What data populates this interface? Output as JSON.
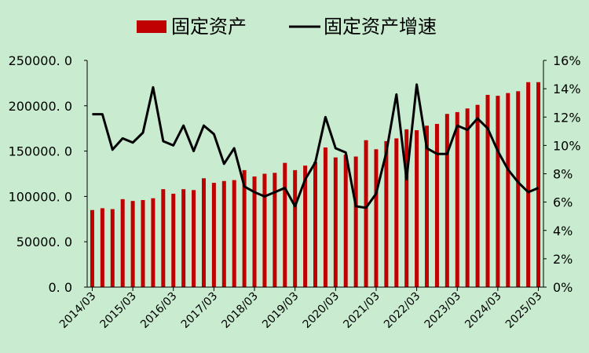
{
  "chart_data": {
    "type": "bar",
    "background_color": "#c9ecd0",
    "grid": false,
    "legend": {
      "position": "top-center",
      "items": [
        {
          "label": "固定资产",
          "kind": "bar",
          "color": "#c00000"
        },
        {
          "label": "固定资产增速",
          "kind": "line",
          "color": "#000000"
        }
      ]
    },
    "x_tick_labels": [
      "2014/03",
      "2015/03",
      "2016/03",
      "2017/03",
      "2018/03",
      "2019/03",
      "2020/03",
      "2021/03",
      "2022/03",
      "2023/03",
      "2024/03",
      "2025/03"
    ],
    "y_left": {
      "range": [
        0,
        250000
      ],
      "ticks": [
        "0. 0",
        "50000. 0",
        "100000. 0",
        "150000. 0",
        "200000. 0",
        "250000. 0"
      ]
    },
    "y_right": {
      "range": [
        0,
        16
      ],
      "unit": "%",
      "ticks": [
        "0%",
        "2%",
        "4%",
        "6%",
        "8%",
        "10%",
        "12%",
        "14%",
        "16%"
      ]
    },
    "categories": [
      "2014/03",
      "2014/06",
      "2014/09",
      "2014/12",
      "2015/03",
      "2015/06",
      "2015/09",
      "2015/12",
      "2016/03",
      "2016/06",
      "2016/09",
      "2016/12",
      "2017/03",
      "2017/06",
      "2017/09",
      "2017/12",
      "2018/03",
      "2018/06",
      "2018/09",
      "2018/12",
      "2019/03",
      "2019/06",
      "2019/09",
      "2019/12",
      "2020/03",
      "2020/06",
      "2020/09",
      "2020/12",
      "2021/03",
      "2021/06",
      "2021/09",
      "2021/12",
      "2022/03",
      "2022/06",
      "2022/09",
      "2022/12",
      "2023/03",
      "2023/06",
      "2023/09",
      "2023/12",
      "2024/03",
      "2024/06",
      "2024/09",
      "2024/12",
      "2025/03"
    ],
    "series": [
      {
        "name": "固定资产",
        "type": "bar",
        "axis": "left",
        "color": "#c00000",
        "values": [
          85000,
          87000,
          86000,
          97000,
          95000,
          96000,
          98000,
          108000,
          103000,
          108000,
          107000,
          120000,
          115000,
          117000,
          118000,
          129000,
          122000,
          125000,
          126000,
          137000,
          129000,
          134000,
          138000,
          154000,
          143000,
          146000,
          144000,
          162000,
          152000,
          161000,
          164000,
          174000,
          173000,
          178000,
          180000,
          191000,
          193000,
          197000,
          201000,
          212000,
          211000,
          214000,
          216000,
          226000,
          226000
        ]
      },
      {
        "name": "固定资产增速",
        "type": "line",
        "axis": "right",
        "color": "#000000",
        "values": [
          12.2,
          12.2,
          9.7,
          10.5,
          10.2,
          10.9,
          14.1,
          10.3,
          10.0,
          11.4,
          9.6,
          11.4,
          10.8,
          8.7,
          9.8,
          7.1,
          6.7,
          6.4,
          6.7,
          7.0,
          5.7,
          7.6,
          8.8,
          12.0,
          9.8,
          9.5,
          5.7,
          5.6,
          6.6,
          9.5,
          13.6,
          7.6,
          14.3,
          9.8,
          9.4,
          9.4,
          11.4,
          11.1,
          11.9,
          11.2,
          9.6,
          8.3,
          7.4,
          6.7,
          7.0
        ]
      }
    ]
  }
}
